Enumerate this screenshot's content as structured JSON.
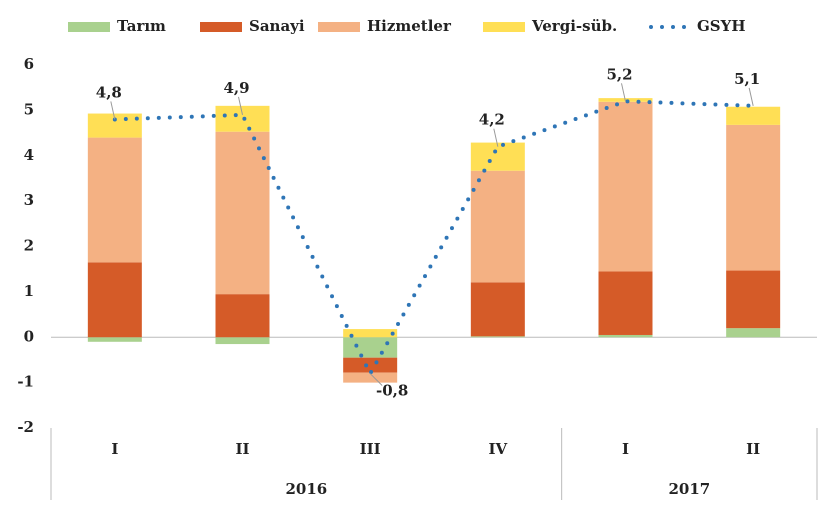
{
  "chart_data": {
    "type": "bar",
    "stacked": true,
    "categories": [
      "I",
      "II",
      "III",
      "IV",
      "I",
      "II"
    ],
    "groups": [
      {
        "label": "2016",
        "span": 4
      },
      {
        "label": "2017",
        "span": 2
      }
    ],
    "ylim": [
      -2,
      6
    ],
    "yticks": [
      -2,
      -1,
      0,
      1,
      2,
      3,
      4,
      5,
      6
    ],
    "series": [
      {
        "name": "Tarım",
        "color": "#a9d18e",
        "values": [
          -0.1,
          -0.15,
          -0.45,
          0.02,
          0.05,
          0.2
        ]
      },
      {
        "name": "Sanayi",
        "color": "#d55b28",
        "values": [
          1.65,
          0.95,
          -0.33,
          1.19,
          1.4,
          1.27
        ]
      },
      {
        "name": "Hizmetler",
        "color": "#f4b183",
        "values": [
          2.75,
          3.58,
          -0.22,
          2.46,
          3.74,
          3.21
        ]
      },
      {
        "name": "Vergi-süb.",
        "color": "#ffdf55",
        "values": [
          0.53,
          0.57,
          0.18,
          0.62,
          0.08,
          0.4
        ]
      },
      {
        "name": "GSYH",
        "color": "#2e75b6",
        "type": "line",
        "values": [
          4.8,
          4.9,
          -0.8,
          4.2,
          5.2,
          5.1
        ],
        "value_labels": [
          "4,8",
          "4,9",
          "-0,8",
          "4,2",
          "5,2",
          "5,1"
        ]
      }
    ]
  }
}
